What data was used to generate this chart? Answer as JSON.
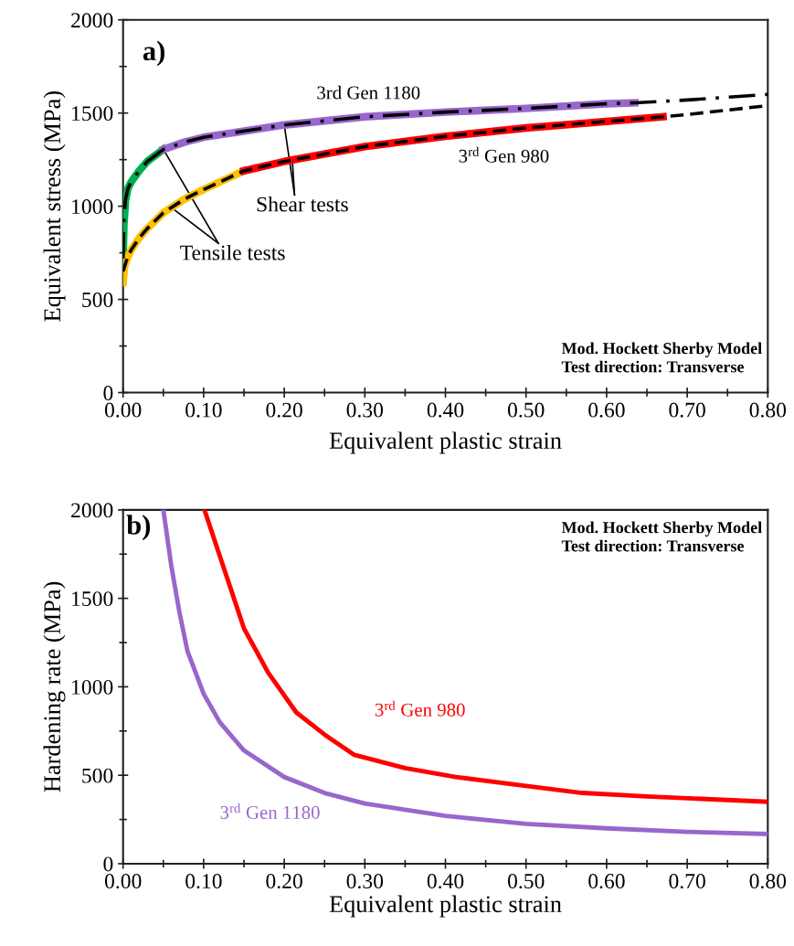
{
  "chart_data": [
    {
      "type": "line",
      "xlabel": "Equivalent plastic strain",
      "ylabel": "Equivalent stress (MPa)",
      "xlim": [
        0,
        0.8
      ],
      "ylim": [
        0,
        2000
      ],
      "xticks": [
        {
          "value": 0,
          "label": "0.00"
        },
        {
          "value": 0.1,
          "label": "0.10"
        },
        {
          "value": 0.2,
          "label": "0.20"
        },
        {
          "value": 0.3,
          "label": "0.30"
        },
        {
          "value": 0.4,
          "label": "0.40"
        },
        {
          "value": 0.5,
          "label": "0.50"
        },
        {
          "value": 0.6,
          "label": "0.60"
        },
        {
          "value": 0.7,
          "label": "0.70"
        },
        {
          "value": 0.8,
          "label": "0.80"
        }
      ],
      "yticks": [
        0,
        500,
        1000,
        1500,
        2000
      ],
      "grid": false,
      "legend": false,
      "series": [
        {
          "color": "#00b050",
          "line_style": "solid",
          "x": [
            0,
            0.001,
            0.003,
            0.006,
            0.01,
            0.02,
            0.03,
            0.05
          ],
          "values": [
            700,
            900,
            1030,
            1095,
            1130,
            1190,
            1240,
            1305
          ]
        },
        {
          "color": "#9966cc",
          "line_style": "solid",
          "x": [
            0.05,
            0.077,
            0.1,
            0.2,
            0.3,
            0.4,
            0.5,
            0.6,
            0.635
          ],
          "values": [
            1305,
            1345,
            1370,
            1436,
            1480,
            1505,
            1525,
            1550,
            1555
          ]
        },
        {
          "color": "#ffc000",
          "line_style": "solid",
          "x": [
            0,
            0.002,
            0.005,
            0.01,
            0.02,
            0.03,
            0.05,
            0.075,
            0.1,
            0.15
          ],
          "values": [
            590,
            680,
            720,
            765,
            830,
            880,
            965,
            1035,
            1090,
            1190
          ]
        },
        {
          "color": "#ff0000",
          "line_style": "solid",
          "x": [
            0.15,
            0.2,
            0.3,
            0.4,
            0.5,
            0.6,
            0.67
          ],
          "values": [
            1190,
            1240,
            1320,
            1375,
            1420,
            1455,
            1480
          ]
        },
        {
          "name": "3rd Gen 1180",
          "color": "#000000",
          "line_style": "dashdot",
          "x": [
            0,
            0.001,
            0.003,
            0.006,
            0.01,
            0.02,
            0.03,
            0.05,
            0.077,
            0.1,
            0.2,
            0.3,
            0.4,
            0.5,
            0.6,
            0.635,
            0.7,
            0.8
          ],
          "values": [
            720,
            920,
            1035,
            1095,
            1130,
            1190,
            1240,
            1305,
            1345,
            1370,
            1436,
            1480,
            1505,
            1525,
            1550,
            1555,
            1570,
            1600
          ]
        },
        {
          "name": "3$^{rd}$ Gen 980",
          "color": "#000000",
          "line_style": "dashed",
          "x": [
            0,
            0.005,
            0.01,
            0.02,
            0.03,
            0.05,
            0.075,
            0.1,
            0.15,
            0.2,
            0.3,
            0.4,
            0.5,
            0.6,
            0.67,
            0.7,
            0.8
          ],
          "values": [
            650,
            720,
            765,
            830,
            880,
            965,
            1035,
            1090,
            1190,
            1240,
            1320,
            1375,
            1420,
            1455,
            1480,
            1492,
            1540
          ]
        }
      ],
      "annotations": [
        "a)",
        {
          "text": "Tensile tests",
          "x": 0.05,
          "y": 1305
        },
        {
          "text": "Shear tests",
          "x": 0.2,
          "y": 1436
        },
        "Mod. Hockett Sherby Model\nTest direction: Transverse"
      ]
    },
    {
      "type": "line",
      "xlabel": "Equivalent plastic strain",
      "ylabel": "Hardening rate (MPa)",
      "xlim": [
        0,
        0.8
      ],
      "ylim": [
        0,
        2000
      ],
      "xticks": [
        {
          "value": 0,
          "label": "0.00"
        },
        {
          "value": 0.1,
          "label": "0.10"
        },
        {
          "value": 0.2,
          "label": "0.20"
        },
        {
          "value": 0.3,
          "label": "0.30"
        },
        {
          "value": 0.4,
          "label": "0.40"
        },
        {
          "value": 0.5,
          "label": "0.50"
        },
        {
          "value": 0.6,
          "label": "0.60"
        },
        {
          "value": 0.7,
          "label": "0.70"
        },
        {
          "value": 0.8,
          "label": "0.80"
        }
      ],
      "yticks": [
        0,
        500,
        1000,
        1500,
        2000
      ],
      "grid": false,
      "legend": false,
      "series": [
        {
          "name": "3$^{rd}$ Gen 980",
          "color": "#ff0000",
          "line_style": "solid",
          "x": [
            0.101,
            0.12,
            0.15,
            0.18,
            0.215,
            0.25,
            0.287,
            0.35,
            0.413,
            0.5,
            0.57,
            0.65,
            0.8
          ],
          "values": [
            2000,
            1740,
            1330,
            1080,
            855,
            730,
            615,
            540,
            490,
            440,
            400,
            380,
            350
          ]
        },
        {
          "name": "3$^{rd}$ Gen 1180",
          "color": "#9966cc",
          "line_style": "solid",
          "x": [
            0.05,
            0.06,
            0.07,
            0.08,
            0.1,
            0.12,
            0.15,
            0.2,
            0.25,
            0.3,
            0.4,
            0.5,
            0.6,
            0.7,
            0.8
          ],
          "values": [
            2000,
            1680,
            1420,
            1200,
            960,
            800,
            640,
            490,
            400,
            340,
            270,
            225,
            200,
            180,
            168
          ]
        }
      ],
      "annotations": [
        "b)",
        "Mod. Hockett Sherby Model\nTest direction: Transverse"
      ]
    }
  ]
}
